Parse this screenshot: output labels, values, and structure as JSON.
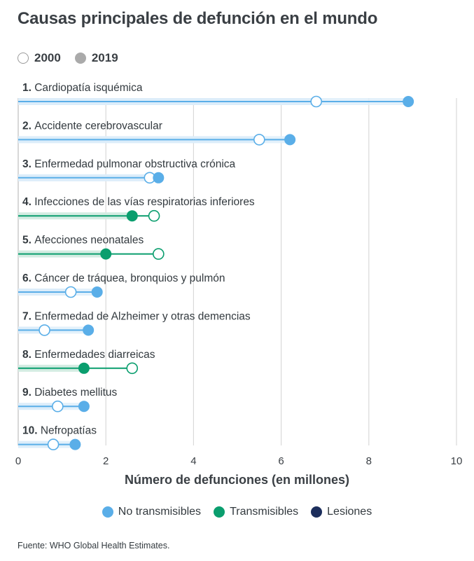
{
  "title": "Causas principales de defunción en el mundo",
  "year_legend": [
    {
      "label": "2000",
      "style": "open"
    },
    {
      "label": "2019",
      "style": "filled"
    }
  ],
  "categories_legend": [
    {
      "label": "No transmisibles",
      "color": "#5aaee8"
    },
    {
      "label": "Transmisibles",
      "color": "#0a9e6e"
    },
    {
      "label": "Lesiones",
      "color": "#1c2e5c"
    }
  ],
  "source": "Fuente: WHO Global Health Estimates.",
  "chart_data": {
    "type": "dumbbell",
    "title": "Causas principales de defunción en el mundo",
    "xlabel": "Número de defunciones (en millones)",
    "ylabel": "",
    "xlim": [
      0,
      10
    ],
    "xticks": [
      0,
      2,
      4,
      6,
      8,
      10
    ],
    "grid": true,
    "series_names": [
      "2000",
      "2019"
    ],
    "colors": {
      "No transmisibles": "#5aaee8",
      "Transmisibles": "#0a9e6e",
      "Lesiones": "#1c2e5c"
    },
    "rows": [
      {
        "rank": "1.",
        "label": "Cardiopatía isquémica",
        "category": "No transmisibles",
        "y2000": 6.8,
        "y2019": 8.9
      },
      {
        "rank": "2.",
        "label": "Accidente cerebrovascular",
        "category": "No transmisibles",
        "y2000": 5.5,
        "y2019": 6.2
      },
      {
        "rank": "3.",
        "label": "Enfermedad pulmonar obstructiva crónica",
        "category": "No transmisibles",
        "y2000": 3.0,
        "y2019": 3.2
      },
      {
        "rank": "4.",
        "label": "Infecciones de las vías respiratorias inferiores",
        "category": "Transmisibles",
        "y2000": 3.1,
        "y2019": 2.6
      },
      {
        "rank": "5.",
        "label": "Afecciones neonatales",
        "category": "Transmisibles",
        "y2000": 3.2,
        "y2019": 2.0
      },
      {
        "rank": "6.",
        "label": "Cáncer de tráquea, bronquios y pulmón",
        "category": "No transmisibles",
        "y2000": 1.2,
        "y2019": 1.8
      },
      {
        "rank": "7.",
        "label": "Enfermedad de Alzheimer y otras demencias",
        "category": "No transmisibles",
        "y2000": 0.6,
        "y2019": 1.6
      },
      {
        "rank": "8.",
        "label": "Enfermedades diarreicas",
        "category": "Transmisibles",
        "y2000": 2.6,
        "y2019": 1.5
      },
      {
        "rank": "9.",
        "label": "Diabetes mellitus",
        "category": "No transmisibles",
        "y2000": 0.9,
        "y2019": 1.5
      },
      {
        "rank": "10.",
        "label": "Nefropatías",
        "category": "No transmisibles",
        "y2000": 0.8,
        "y2019": 1.3
      }
    ]
  }
}
